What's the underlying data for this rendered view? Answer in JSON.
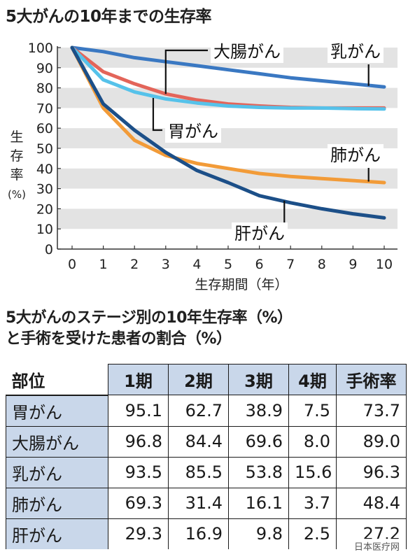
{
  "title": "5大がんの10年までの生存率",
  "table_title_line1": "5大がんのステージ別の10年生存率（%）",
  "table_title_line2": "と手術を受けた患者の割合（%）",
  "watermark": "日本医疗网",
  "chart_data": {
    "type": "line",
    "x": [
      0,
      1,
      2,
      3,
      4,
      5,
      6,
      7,
      8,
      9,
      10
    ],
    "xlabel": "生存期間（年）",
    "ylabel": "生存率（%）",
    "ylabel_chars": [
      "生",
      "存",
      "率",
      "(%)"
    ],
    "xlim": [
      0,
      10
    ],
    "ylim": [
      0,
      100
    ],
    "xticks": [
      0,
      1,
      2,
      3,
      4,
      5,
      6,
      7,
      8,
      9,
      10
    ],
    "yticks": [
      0,
      10,
      20,
      30,
      40,
      50,
      60,
      70,
      80,
      90,
      100
    ],
    "grid": "alternating horizontal bands",
    "legend": "inline labels",
    "series": [
      {
        "name": "乳がん",
        "color": "#3a78c2",
        "values": [
          100,
          98,
          95,
          93,
          91,
          89,
          87,
          85,
          83.5,
          82,
          80.5
        ]
      },
      {
        "name": "大腸がん",
        "color": "#e3655a",
        "values": [
          100,
          88,
          82,
          77,
          74,
          72,
          71,
          70.3,
          70,
          70,
          70
        ]
      },
      {
        "name": "胃がん",
        "color": "#56c2ea",
        "values": [
          100,
          84,
          78,
          74.5,
          72.5,
          71,
          70.3,
          70,
          70,
          69.7,
          69.5
        ]
      },
      {
        "name": "肺がん",
        "color": "#f29b38",
        "values": [
          100,
          70,
          54,
          46.5,
          42.5,
          40,
          37.5,
          36,
          35,
          34,
          33
        ]
      },
      {
        "name": "肝がん",
        "color": "#1c4f88",
        "values": [
          100,
          72,
          59,
          48,
          39,
          33,
          26.5,
          23,
          20,
          17.5,
          15.5
        ]
      }
    ],
    "annotations": [
      {
        "label": "大腸がん",
        "series": "大腸がん",
        "x": 3.0,
        "y": 77
      },
      {
        "label": "乳がん",
        "series": "乳がん",
        "x": 9.5,
        "y": 81
      },
      {
        "label": "胃がん",
        "series": "胃がん",
        "x": 2.6,
        "y": 75
      },
      {
        "label": "肺がん",
        "series": "肺がん",
        "x": 9.5,
        "y": 33.5
      },
      {
        "label": "肝がん",
        "series": "肝がん",
        "x": 6.8,
        "y": 24
      }
    ]
  },
  "table": {
    "headers": [
      "部位",
      "1期",
      "2期",
      "3期",
      "4期",
      "手術率"
    ],
    "rows": [
      [
        "胃がん",
        "95.1",
        "62.7",
        "38.9",
        "7.5",
        "73.7"
      ],
      [
        "大腸がん",
        "96.8",
        "84.4",
        "69.6",
        "8.0",
        "89.0"
      ],
      [
        "乳がん",
        "93.5",
        "85.5",
        "53.8",
        "15.6",
        "96.3"
      ],
      [
        "肺がん",
        "69.3",
        "31.4",
        "16.1",
        "3.7",
        "48.4"
      ],
      [
        "肝がん",
        "29.3",
        "16.9",
        "9.8",
        "2.5",
        "27.2"
      ]
    ]
  }
}
